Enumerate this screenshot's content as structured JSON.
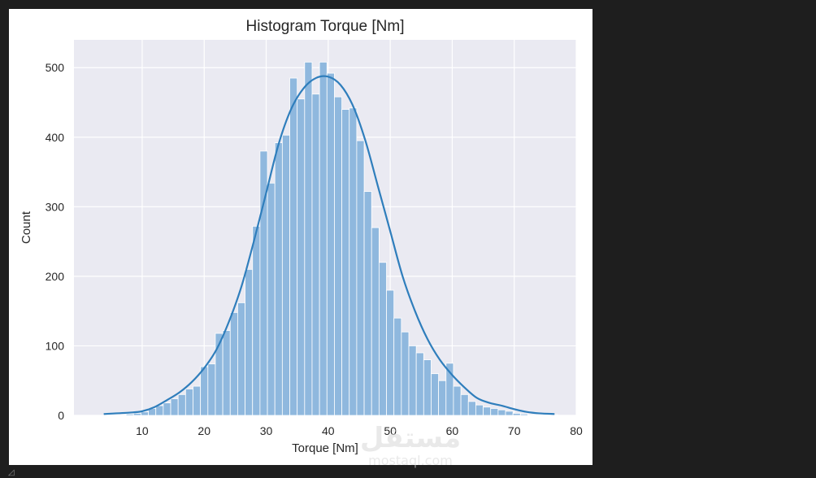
{
  "chart_data": {
    "type": "histogram",
    "title": "Histogram Torque [Nm]",
    "xlabel": "Torque [Nm]",
    "ylabel": "Count",
    "xlim": [
      -1,
      80
    ],
    "ylim": [
      0,
      540
    ],
    "xticks": [
      10,
      20,
      30,
      40,
      50,
      60,
      70,
      80
    ],
    "yticks": [
      0,
      100,
      200,
      300,
      400,
      500
    ],
    "grid": true,
    "background_color": "#eaeaf2",
    "bar_color": "#8fb8de",
    "bar_edge_color": "#ffffff",
    "kde_color": "#2f7ebc",
    "bins": {
      "edges": [
        3.8,
        5.0,
        6.2,
        7.4,
        8.6,
        9.8,
        11.0,
        12.2,
        13.4,
        14.6,
        15.8,
        17.0,
        18.2,
        19.4,
        20.6,
        21.8,
        23.0,
        24.2,
        25.4,
        26.6,
        27.8,
        29.0,
        30.2,
        31.4,
        32.6,
        33.8,
        35.0,
        36.2,
        37.4,
        38.6,
        39.8,
        41.0,
        42.2,
        43.4,
        44.6,
        45.8,
        47.0,
        48.2,
        49.4,
        50.6,
        51.8,
        53.0,
        54.2,
        55.4,
        56.6,
        57.8,
        59.0,
        60.2,
        61.4,
        62.6,
        63.8,
        65.0,
        66.2,
        67.4,
        68.6,
        69.8,
        71.0,
        72.2,
        73.4,
        74.6,
        75.8,
        77.0
      ],
      "counts": [
        1,
        1,
        1,
        2,
        3,
        5,
        10,
        14,
        18,
        24,
        30,
        38,
        42,
        70,
        74,
        118,
        122,
        148,
        162,
        210,
        272,
        380,
        334,
        392,
        403,
        485,
        455,
        508,
        462,
        508,
        492,
        458,
        440,
        442,
        395,
        322,
        270,
        220,
        180,
        140,
        120,
        100,
        90,
        80,
        60,
        50,
        75,
        42,
        30,
        20,
        15,
        12,
        10,
        8,
        6,
        3,
        2,
        1,
        1,
        1,
        1
      ]
    },
    "kde": {
      "x": [
        3.8,
        8,
        10,
        12,
        14,
        16,
        18,
        20,
        22,
        24,
        26,
        28,
        30,
        32,
        34,
        36,
        38,
        40,
        42,
        44,
        46,
        48,
        50,
        52,
        54,
        56,
        58,
        60,
        62,
        64,
        66,
        68,
        70,
        72,
        74,
        76.5
      ],
      "y": [
        2,
        4,
        6,
        12,
        22,
        33,
        48,
        68,
        95,
        135,
        185,
        250,
        320,
        390,
        440,
        470,
        485,
        487,
        475,
        445,
        395,
        330,
        265,
        200,
        150,
        110,
        80,
        58,
        40,
        25,
        18,
        14,
        9,
        5,
        3,
        2
      ]
    }
  },
  "watermark": {
    "arabic": "مستقل",
    "latin": "mostaql.com"
  }
}
